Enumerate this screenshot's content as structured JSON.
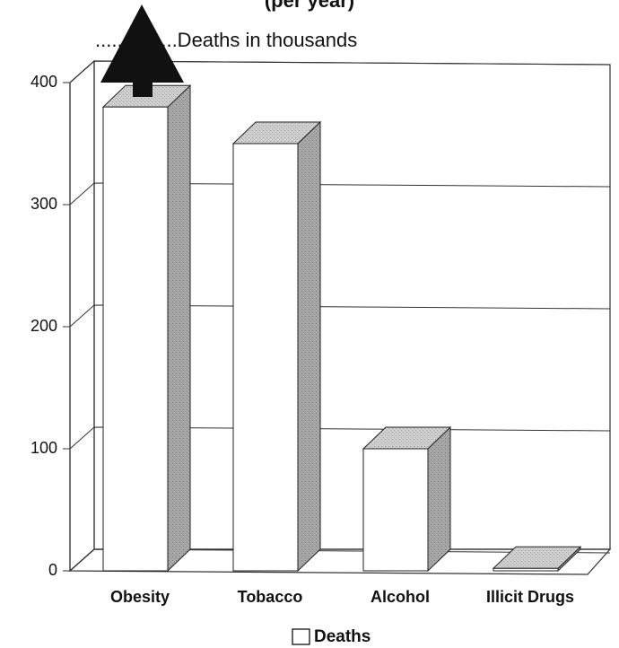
{
  "chart_data": {
    "type": "bar3d",
    "title": "(per year)",
    "annotation": "...............Deaths in thousands",
    "categories": [
      "Obesity",
      "Tobacco",
      "Alcohol",
      "Illicit Drugs"
    ],
    "series": [
      {
        "name": "Deaths",
        "color": "#ffffff",
        "values": [
          380,
          350,
          100,
          2
        ]
      }
    ],
    "ylim": [
      0,
      400
    ],
    "yticks": [
      0,
      100,
      200,
      300,
      400
    ],
    "grid": true
  }
}
